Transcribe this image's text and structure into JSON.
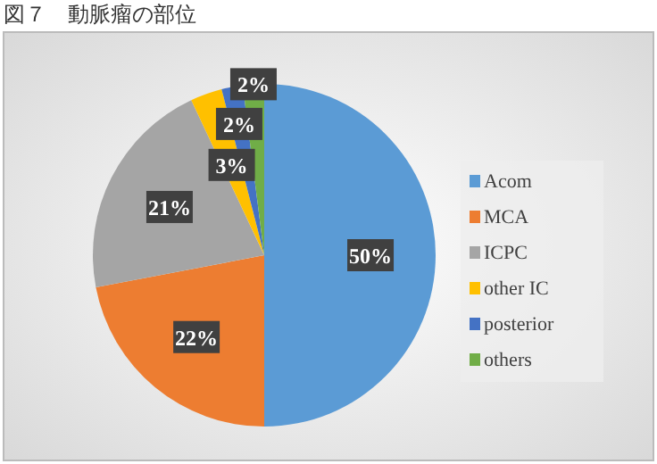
{
  "chart_data": {
    "type": "pie",
    "title": "図７　動脈瘤の部位",
    "categories": [
      "Acom",
      "MCA",
      "ICPC",
      "other IC",
      "posterior",
      "others"
    ],
    "values": [
      50,
      22,
      21,
      3,
      2,
      2
    ],
    "colors": [
      "#5b9bd5",
      "#ed7d31",
      "#a5a5a5",
      "#ffc000",
      "#4472c4",
      "#70ad47"
    ],
    "value_labels": [
      "50%",
      "22%",
      "21%",
      "3%",
      "2%",
      "2%"
    ],
    "legend": "right"
  }
}
